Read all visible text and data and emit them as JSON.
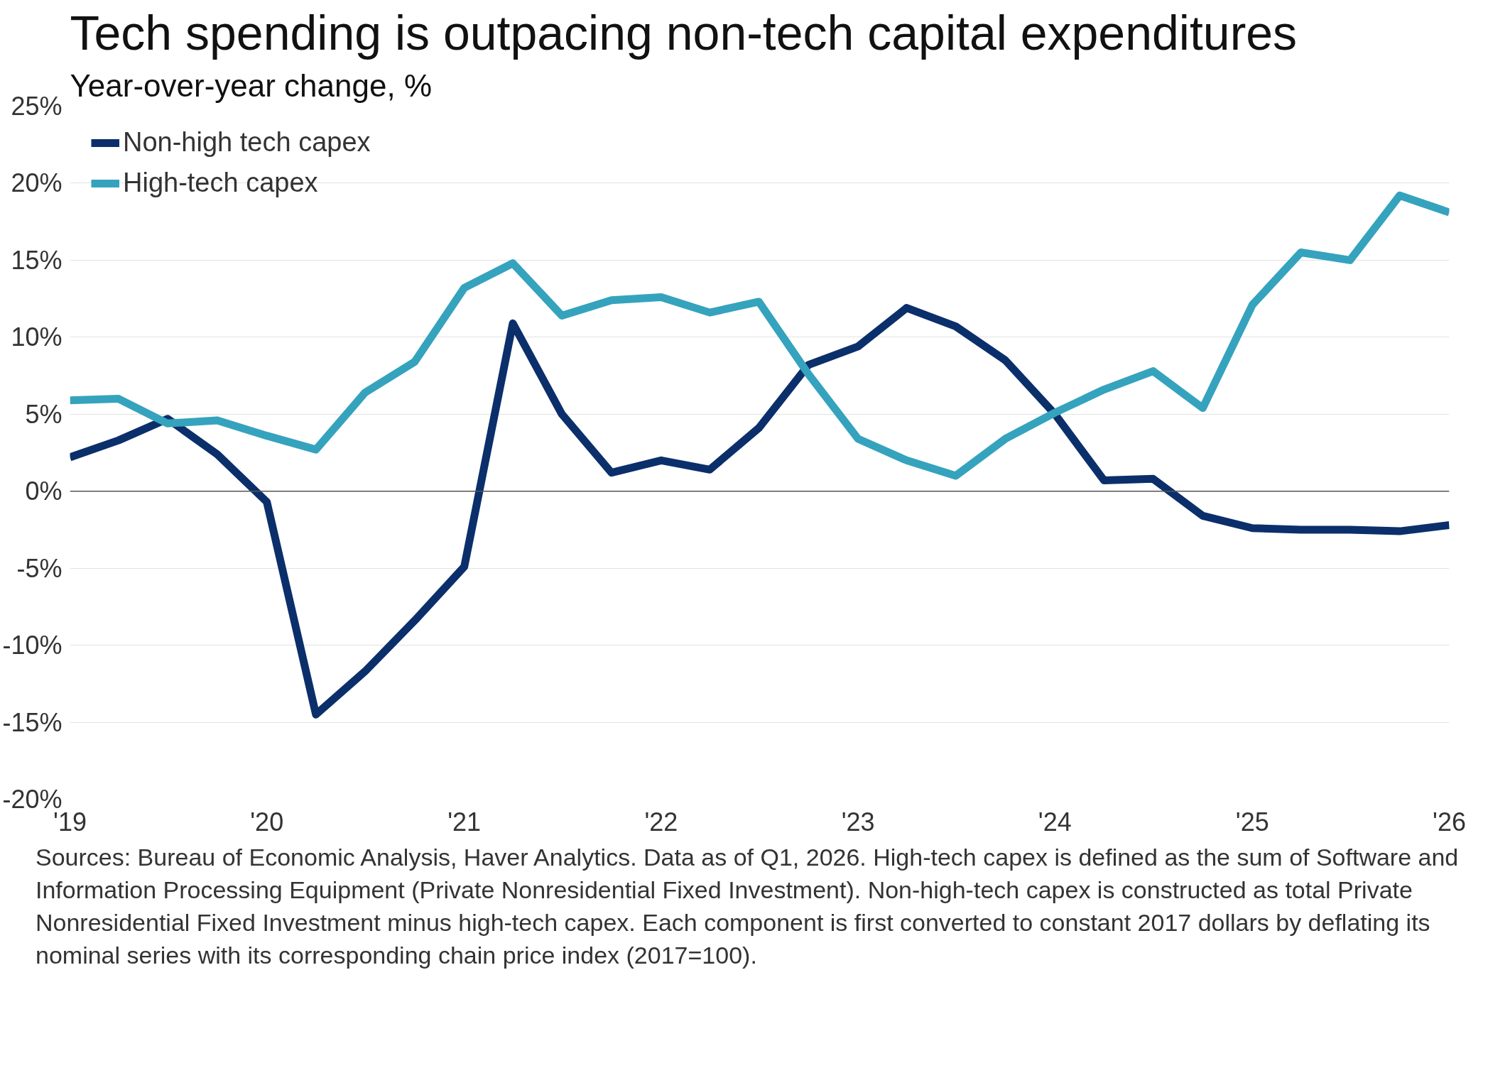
{
  "chart_data": {
    "type": "line",
    "title": "Tech spending is outpacing non-tech capital expenditures",
    "ylabel": "Year-over-year change, %",
    "x": [
      "2019-01",
      "2019-04",
      "2019-07",
      "2019-10",
      "2020-01",
      "2020-04",
      "2020-07",
      "2020-10",
      "2021-01",
      "2021-04",
      "2021-07",
      "2021-10",
      "2022-01",
      "2022-04",
      "2022-07",
      "2022-10",
      "2023-01",
      "2023-04",
      "2023-07",
      "2023-10",
      "2024-01",
      "2024-04",
      "2024-07",
      "2024-10",
      "2025-01",
      "2025-04",
      "2025-07",
      "2025-10",
      "2026-01"
    ],
    "series": [
      {
        "name": "Non-high tech capex",
        "color": "#0b2f6b",
        "values": [
          2.2,
          3.3,
          4.7,
          2.4,
          -0.7,
          -14.5,
          -11.7,
          -8.4,
          -4.9,
          10.9,
          5.0,
          1.2,
          2.0,
          1.4,
          4.1,
          8.2,
          9.4,
          11.9,
          10.7,
          8.5,
          5.0,
          0.7,
          0.8,
          -1.6,
          -2.4,
          -2.5,
          -2.5,
          -2.6,
          -2.2
        ]
      },
      {
        "name": "High-tech capex",
        "color": "#35a3bd",
        "values": [
          5.9,
          6.0,
          4.4,
          4.6,
          3.6,
          2.7,
          6.4,
          8.4,
          13.2,
          14.8,
          11.4,
          12.4,
          12.6,
          11.6,
          12.3,
          7.6,
          3.4,
          2.0,
          1.0,
          3.4,
          5.1,
          6.6,
          7.8,
          5.4,
          12.1,
          15.5,
          15.0,
          19.2,
          18.1
        ]
      }
    ],
    "xlim": [
      "2019-01",
      "2026-01"
    ],
    "xticks": [
      {
        "value": "2019",
        "label": "'19"
      },
      {
        "value": "2020",
        "label": "'20"
      },
      {
        "value": "2021",
        "label": "'21"
      },
      {
        "value": "2022",
        "label": "'22"
      },
      {
        "value": "2023",
        "label": "'23"
      },
      {
        "value": "2024",
        "label": "'24"
      },
      {
        "value": "2025",
        "label": "'25"
      },
      {
        "value": "2026",
        "label": "'26"
      }
    ],
    "ylim": [
      -20,
      25
    ],
    "yticks": [
      {
        "value": -20,
        "label": "-20%"
      },
      {
        "value": -15,
        "label": "-15%"
      },
      {
        "value": -10,
        "label": "-10%"
      },
      {
        "value": -5,
        "label": "-5%"
      },
      {
        "value": 0,
        "label": "0%"
      },
      {
        "value": 5,
        "label": "5%"
      },
      {
        "value": 10,
        "label": "10%"
      },
      {
        "value": 15,
        "label": "15%"
      },
      {
        "value": 20,
        "label": "20%"
      },
      {
        "value": 25,
        "label": "25%"
      }
    ],
    "ref_lines": [
      {
        "axis": "y",
        "value": 0,
        "color": "#555555"
      }
    ],
    "grid": "y",
    "legend": "top left",
    "line_style": "solid",
    "annotations": [
      "Sources: Bureau of Economic Analysis, Haver Analytics. Data as of Q1, 2026. High-tech capex is defined as the sum of Software and Information Processing Equipment (Private Nonresidential Fixed Investment). Non-high-tech capex is constructed as total Private Nonresidential Fixed Investment minus high-tech capex. Each component is first converted to constant 2017 dollars by deflating its nominal series with its corresponding chain price index (2017=100)."
    ]
  }
}
